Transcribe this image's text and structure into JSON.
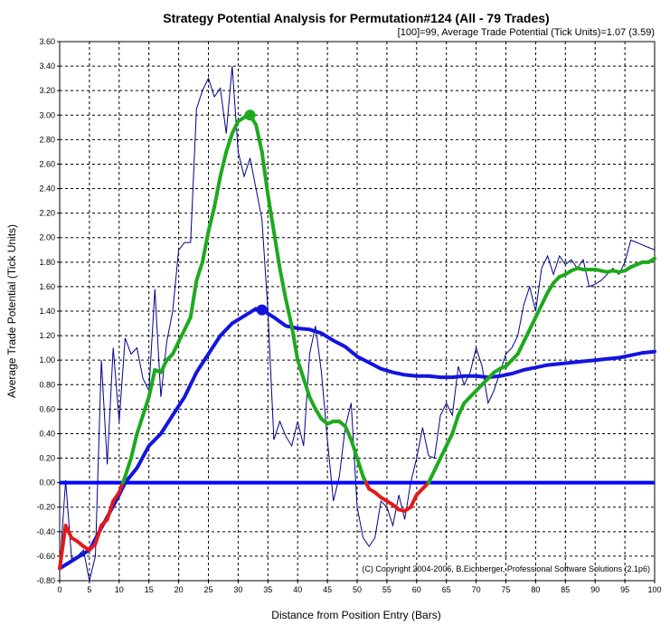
{
  "chart_data": {
    "type": "line",
    "title": "Strategy Potential Analysis for Permutation#124 (All - 79 Trades)",
    "subtitle": "[100]=99,   Average Trade Potential (Tick Units)=1.07 (3.59)",
    "xlabel": "Distance from Position Entry (Bars)",
    "ylabel": "Average Trade Potential (Tick Units)",
    "copyright": "(C) Copyright  2004-2006, B.Eichberger, Professional Software Solutions (2.1p6)",
    "xlim": [
      0,
      100
    ],
    "ylim": [
      -0.8,
      3.6
    ],
    "xticks": [
      "0",
      "5",
      "10",
      "15",
      "20",
      "25",
      "30",
      "35",
      "40",
      "45",
      "50",
      "55",
      "60",
      "65",
      "70",
      "75",
      "80",
      "85",
      "90",
      "95",
      "100"
    ],
    "yticks": [
      "-0.80",
      "-0.60",
      "-0.40",
      "-0.20",
      "0.00",
      "0.20",
      "0.40",
      "0.60",
      "0.80",
      "1.00",
      "1.20",
      "1.40",
      "1.60",
      "1.80",
      "2.00",
      "2.20",
      "2.40",
      "2.60",
      "2.80",
      "3.00",
      "3.20",
      "3.40",
      "3.60"
    ],
    "grid": true,
    "colors": {
      "raw": "#00008B",
      "smooth_positive": "#1DAA1D",
      "smooth_negative": "#E31A1A",
      "average": "#1414E0",
      "zero": "#0000FF"
    },
    "series": [
      {
        "key": "raw",
        "x": [
          0,
          1,
          2,
          3,
          4,
          5,
          6,
          7,
          8,
          9,
          10,
          11,
          12,
          13,
          14,
          15,
          16,
          17,
          18,
          19,
          20,
          21,
          22,
          23,
          24,
          25,
          26,
          27,
          28,
          29,
          30,
          31,
          32,
          33,
          34,
          35,
          36,
          37,
          38,
          39,
          40,
          41,
          42,
          43,
          44,
          45,
          46,
          47,
          48,
          49,
          50,
          51,
          52,
          53,
          54,
          55,
          56,
          57,
          58,
          59,
          60,
          61,
          62,
          63,
          64,
          65,
          66,
          67,
          68,
          69,
          70,
          71,
          72,
          73,
          74,
          75,
          76,
          77,
          78,
          79,
          80,
          81,
          82,
          83,
          84,
          85,
          86,
          87,
          88,
          89,
          90,
          91,
          92,
          93,
          94,
          95,
          96,
          97,
          98,
          99,
          100
        ],
        "values": [
          -0.7,
          0.02,
          -0.62,
          -0.6,
          -0.55,
          -0.8,
          -0.6,
          1.0,
          0.15,
          1.1,
          0.5,
          1.18,
          1.05,
          1.1,
          0.85,
          0.75,
          1.58,
          0.7,
          1.15,
          1.4,
          1.9,
          1.96,
          1.96,
          3.05,
          3.2,
          3.3,
          3.15,
          3.22,
          2.85,
          3.4,
          2.7,
          2.5,
          2.65,
          2.4,
          2.15,
          1.4,
          0.35,
          0.5,
          0.38,
          0.3,
          0.5,
          0.3,
          1.05,
          1.28,
          0.9,
          0.35,
          -0.15,
          0.05,
          0.45,
          0.65,
          -0.2,
          -0.45,
          -0.52,
          -0.45,
          -0.15,
          -0.2,
          -0.35,
          -0.1,
          -0.3,
          0.0,
          0.2,
          0.45,
          0.22,
          0.2,
          0.55,
          0.65,
          0.55,
          0.95,
          0.8,
          0.9,
          1.1,
          0.95,
          0.65,
          0.75,
          0.9,
          1.05,
          1.1,
          1.2,
          1.45,
          1.6,
          1.4,
          1.75,
          1.85,
          1.7,
          1.85,
          1.78,
          1.82,
          1.75,
          1.82,
          1.6,
          1.62,
          1.65,
          1.7,
          1.75,
          1.7,
          1.8,
          1.98,
          1.96,
          1.94,
          1.92,
          1.9
        ]
      },
      {
        "key": "smooth",
        "x": [
          0,
          1,
          2,
          3,
          4,
          5,
          6,
          7,
          8,
          9,
          10,
          11,
          12,
          13,
          14,
          15,
          16,
          17,
          18,
          19,
          20,
          21,
          22,
          23,
          24,
          25,
          26,
          27,
          28,
          29,
          30,
          31,
          32,
          33,
          34,
          35,
          36,
          37,
          38,
          39,
          40,
          41,
          42,
          43,
          44,
          45,
          46,
          47,
          48,
          49,
          50,
          51,
          52,
          53,
          54,
          55,
          56,
          57,
          58,
          59,
          60,
          61,
          62,
          63,
          64,
          65,
          66,
          67,
          68,
          69,
          70,
          71,
          72,
          73,
          74,
          75,
          76,
          77,
          78,
          79,
          80,
          81,
          82,
          83,
          84,
          85,
          86,
          87,
          88,
          89,
          90,
          91,
          92,
          93,
          94,
          95,
          96,
          97,
          98,
          99,
          100
        ],
        "values": [
          -0.7,
          -0.35,
          -0.45,
          -0.48,
          -0.52,
          -0.55,
          -0.5,
          -0.35,
          -0.3,
          -0.15,
          -0.08,
          0.05,
          0.2,
          0.4,
          0.55,
          0.7,
          0.92,
          0.9,
          1.0,
          1.05,
          1.15,
          1.25,
          1.35,
          1.65,
          1.8,
          2.05,
          2.25,
          2.5,
          2.7,
          2.85,
          2.95,
          2.98,
          3.0,
          2.92,
          2.7,
          2.35,
          2.05,
          1.75,
          1.5,
          1.28,
          1.0,
          0.85,
          0.7,
          0.6,
          0.52,
          0.48,
          0.5,
          0.5,
          0.46,
          0.35,
          0.2,
          0.05,
          -0.05,
          -0.08,
          -0.12,
          -0.15,
          -0.18,
          -0.22,
          -0.23,
          -0.2,
          -0.1,
          -0.05,
          0.0,
          0.1,
          0.2,
          0.3,
          0.4,
          0.55,
          0.65,
          0.7,
          0.75,
          0.8,
          0.85,
          0.9,
          0.93,
          0.95,
          1.0,
          1.05,
          1.15,
          1.25,
          1.35,
          1.45,
          1.55,
          1.63,
          1.68,
          1.7,
          1.73,
          1.75,
          1.74,
          1.74,
          1.74,
          1.73,
          1.72,
          1.73,
          1.72,
          1.73,
          1.76,
          1.78,
          1.8,
          1.8,
          1.83
        ]
      },
      {
        "key": "average",
        "x": [
          0,
          5,
          10,
          11,
          13,
          15,
          17,
          19,
          21,
          23,
          25,
          27,
          29,
          31,
          33,
          34,
          36,
          38,
          40,
          42,
          44,
          46,
          48,
          50,
          52,
          54,
          56,
          58,
          60,
          62,
          64,
          66,
          68,
          70,
          72,
          74,
          76,
          78,
          80,
          82,
          84,
          86,
          88,
          90,
          92,
          94,
          96,
          98,
          100
        ],
        "values": [
          -0.7,
          -0.55,
          -0.1,
          0.0,
          0.12,
          0.3,
          0.4,
          0.55,
          0.7,
          0.9,
          1.05,
          1.2,
          1.3,
          1.36,
          1.42,
          1.41,
          1.35,
          1.28,
          1.26,
          1.25,
          1.22,
          1.16,
          1.11,
          1.03,
          0.98,
          0.93,
          0.9,
          0.88,
          0.87,
          0.87,
          0.86,
          0.86,
          0.87,
          0.87,
          0.86,
          0.87,
          0.89,
          0.92,
          0.94,
          0.96,
          0.97,
          0.98,
          0.99,
          1.0,
          1.01,
          1.02,
          1.04,
          1.06,
          1.07
        ]
      }
    ],
    "markers": [
      {
        "series": "smooth",
        "x": 32,
        "y": 3.0
      },
      {
        "series": "average",
        "x": 34,
        "y": 1.41
      }
    ],
    "hline": 0
  }
}
